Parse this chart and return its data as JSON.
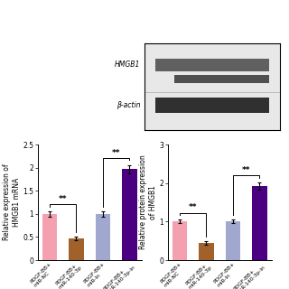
{
  "categories": [
    "PDGF-BB+miR-NC",
    "PDGF-BB+miR-140-3p",
    "PDGF-BB+miR-In",
    "PDGF-BB+miR-140-3p-In"
  ],
  "left_chart": {
    "values": [
      1.0,
      0.47,
      1.0,
      1.97
    ],
    "errors": [
      0.06,
      0.04,
      0.06,
      0.09
    ],
    "ylim": [
      0.0,
      2.5
    ],
    "yticks": [
      0.0,
      0.5,
      1.0,
      1.5,
      2.0,
      2.5
    ],
    "ylabel": "Relative expression of\nHMGB1 mRNA"
  },
  "right_chart": {
    "values": [
      1.0,
      0.45,
      1.0,
      1.92
    ],
    "errors": [
      0.05,
      0.04,
      0.05,
      0.1
    ],
    "ylim": [
      0.0,
      3.0
    ],
    "yticks": [
      0,
      1,
      2,
      3
    ],
    "ylabel": "Relative protein expression\nof HMGB1"
  },
  "bar_colors": [
    "#F4A0B0",
    "#A0622A",
    "#A0A8D0",
    "#4B0082"
  ],
  "background_color": "#FFFFFF",
  "tick_fontsize": 5.5,
  "label_fontsize": 5.5,
  "bar_width": 0.55,
  "wb_band1_color": "#606060",
  "wb_band2_color": "#505050",
  "wb_band3_color": "#303030",
  "wb_bg": "#e8e8e8"
}
